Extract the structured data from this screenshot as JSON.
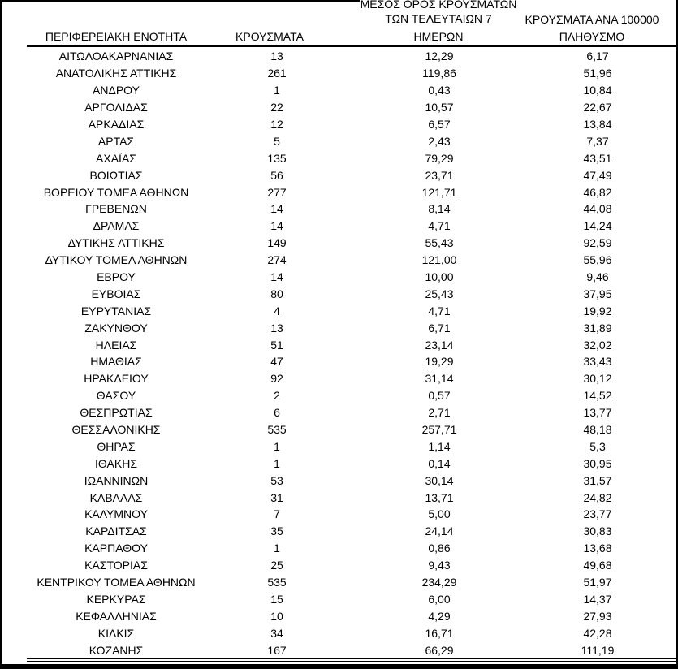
{
  "colors": {
    "text": "#000000",
    "border": "#000000",
    "background": "#ffffff"
  },
  "table": {
    "header": {
      "region": "ΠΕΡΙΦΕΡΕΙΑΚΗ ΕΝΟΤΗΤΑ",
      "cases": "ΚΡΟΥΣΜΑΤΑ",
      "avg7_line1": "ΜΕΣΟΣ ΟΡΟΣ ΚΡΟΥΣΜΑΤΩΝ",
      "avg7_line2": "ΤΩΝ ΤΕΛΕΥΤΑΙΩΝ 7",
      "avg7_line3": "ΗΜΕΡΩΝ",
      "per100k_line1": "ΚΡΟΥΣΜΑΤΑ ΑΝΑ 100000",
      "per100k_line2": "ΠΛΗΘΥΣΜΟ"
    },
    "columns": [
      "region",
      "cases",
      "avg7days",
      "per100k"
    ],
    "rows": [
      [
        "ΑΙΤΩΛΟΑΚΑΡΝΑΝΙΑΣ",
        "13",
        "12,29",
        "6,17"
      ],
      [
        "ΑΝΑΤΟΛΙΚΗΣ ΑΤΤΙΚΗΣ",
        "261",
        "119,86",
        "51,96"
      ],
      [
        "ΑΝΔΡΟΥ",
        "1",
        "0,43",
        "10,84"
      ],
      [
        "ΑΡΓΟΛΙΔΑΣ",
        "22",
        "10,57",
        "22,67"
      ],
      [
        "ΑΡΚΑΔΙΑΣ",
        "12",
        "6,57",
        "13,84"
      ],
      [
        "ΑΡΤΑΣ",
        "5",
        "2,43",
        "7,37"
      ],
      [
        "ΑΧΑΪΑΣ",
        "135",
        "79,29",
        "43,51"
      ],
      [
        "ΒΟΙΩΤΙΑΣ",
        "56",
        "23,71",
        "47,49"
      ],
      [
        "ΒΟΡΕΙΟΥ ΤΟΜΕΑ ΑΘΗΝΩΝ",
        "277",
        "121,71",
        "46,82"
      ],
      [
        "ΓΡΕΒΕΝΩΝ",
        "14",
        "8,14",
        "44,08"
      ],
      [
        "ΔΡΑΜΑΣ",
        "14",
        "4,71",
        "14,24"
      ],
      [
        "ΔΥΤΙΚΗΣ ΑΤΤΙΚΗΣ",
        "149",
        "55,43",
        "92,59"
      ],
      [
        "ΔΥΤΙΚΟΥ ΤΟΜΕΑ ΑΘΗΝΩΝ",
        "274",
        "121,00",
        "55,96"
      ],
      [
        "ΕΒΡΟΥ",
        "14",
        "10,00",
        "9,46"
      ],
      [
        "ΕΥΒΟΙΑΣ",
        "80",
        "25,43",
        "37,95"
      ],
      [
        "ΕΥΡΥΤΑΝΙΑΣ",
        "4",
        "4,71",
        "19,92"
      ],
      [
        "ΖΑΚΥΝΘΟΥ",
        "13",
        "6,71",
        "31,89"
      ],
      [
        "ΗΛΕΙΑΣ",
        "51",
        "23,14",
        "32,02"
      ],
      [
        "ΗΜΑΘΙΑΣ",
        "47",
        "19,29",
        "33,43"
      ],
      [
        "ΗΡΑΚΛΕΙΟΥ",
        "92",
        "31,14",
        "30,12"
      ],
      [
        "ΘΑΣΟΥ",
        "2",
        "0,57",
        "14,52"
      ],
      [
        "ΘΕΣΠΡΩΤΙΑΣ",
        "6",
        "2,71",
        "13,77"
      ],
      [
        "ΘΕΣΣΑΛΟΝΙΚΗΣ",
        "535",
        "257,71",
        "48,18"
      ],
      [
        "ΘΗΡΑΣ",
        "1",
        "1,14",
        "5,3"
      ],
      [
        "ΙΘΑΚΗΣ",
        "1",
        "0,14",
        "30,95"
      ],
      [
        "ΙΩΑΝΝΙΝΩΝ",
        "53",
        "30,14",
        "31,57"
      ],
      [
        "ΚΑΒΑΛΑΣ",
        "31",
        "13,71",
        "24,82"
      ],
      [
        "ΚΑΛΥΜΝΟΥ",
        "7",
        "5,00",
        "23,77"
      ],
      [
        "ΚΑΡΔΙΤΣΑΣ",
        "35",
        "24,14",
        "30,83"
      ],
      [
        "ΚΑΡΠΑΘΟΥ",
        "1",
        "0,86",
        "13,68"
      ],
      [
        "ΚΑΣΤΟΡΙΑΣ",
        "25",
        "9,43",
        "49,68"
      ],
      [
        "ΚΕΝΤΡΙΚΟΥ ΤΟΜΕΑ ΑΘΗΝΩΝ",
        "535",
        "234,29",
        "51,97"
      ],
      [
        "ΚΕΡΚΥΡΑΣ",
        "15",
        "6,00",
        "14,37"
      ],
      [
        "ΚΕΦΑΛΛΗΝΙΑΣ",
        "10",
        "4,29",
        "27,93"
      ],
      [
        "ΚΙΛΚΙΣ",
        "34",
        "16,71",
        "42,28"
      ],
      [
        "ΚΟΖΑΝΗΣ",
        "167",
        "66,29",
        "111,19"
      ]
    ]
  }
}
